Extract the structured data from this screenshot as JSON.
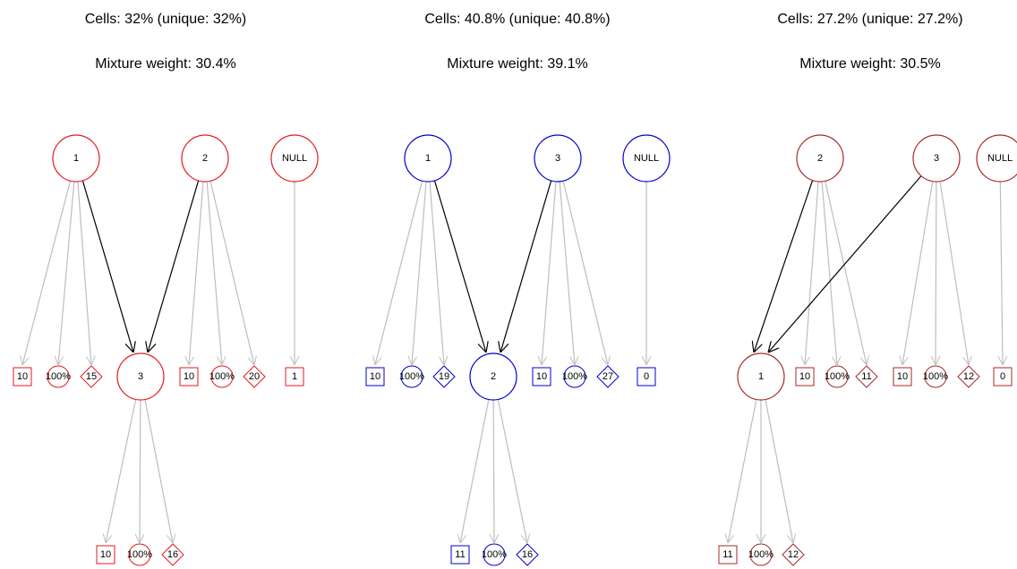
{
  "panels": [
    {
      "title": "Cells: 32% (unique: 32%)",
      "subtitle": "Mixture weight: 30.4%",
      "color": "#e41a1c",
      "parents": [
        {
          "label": "1",
          "items": [
            "10",
            "100%",
            "15"
          ]
        },
        {
          "label": "2",
          "items": [
            "10",
            "100%",
            "20"
          ]
        }
      ],
      "null": {
        "label": "NULL",
        "items": [
          "1"
        ]
      },
      "child": {
        "label": "3",
        "items": [
          "10",
          "100%",
          "16"
        ]
      }
    },
    {
      "title": "Cells: 40.8% (unique: 40.8%)",
      "subtitle": "Mixture weight: 39.1%",
      "color": "#0000cc",
      "parents": [
        {
          "label": "1",
          "items": [
            "10",
            "100%",
            "19"
          ]
        },
        {
          "label": "3",
          "items": [
            "10",
            "100%",
            "27"
          ]
        }
      ],
      "null": {
        "label": "NULL",
        "items": [
          "0"
        ]
      },
      "child": {
        "label": "2",
        "items": [
          "11",
          "100%",
          "16"
        ]
      }
    },
    {
      "title": "Cells: 27.2% (unique: 27.2%)",
      "subtitle": "Mixture weight: 30.5%",
      "color": "#a52a2a",
      "parents": [
        {
          "label": "2",
          "items": [
            "10",
            "100%",
            "11"
          ]
        },
        {
          "label": "3",
          "items": [
            "10",
            "100%",
            "12"
          ]
        }
      ],
      "null": {
        "label": "NULL",
        "items": [
          "0"
        ]
      },
      "child": {
        "label": "1",
        "items": [
          "11",
          "100%",
          "12"
        ]
      }
    }
  ]
}
